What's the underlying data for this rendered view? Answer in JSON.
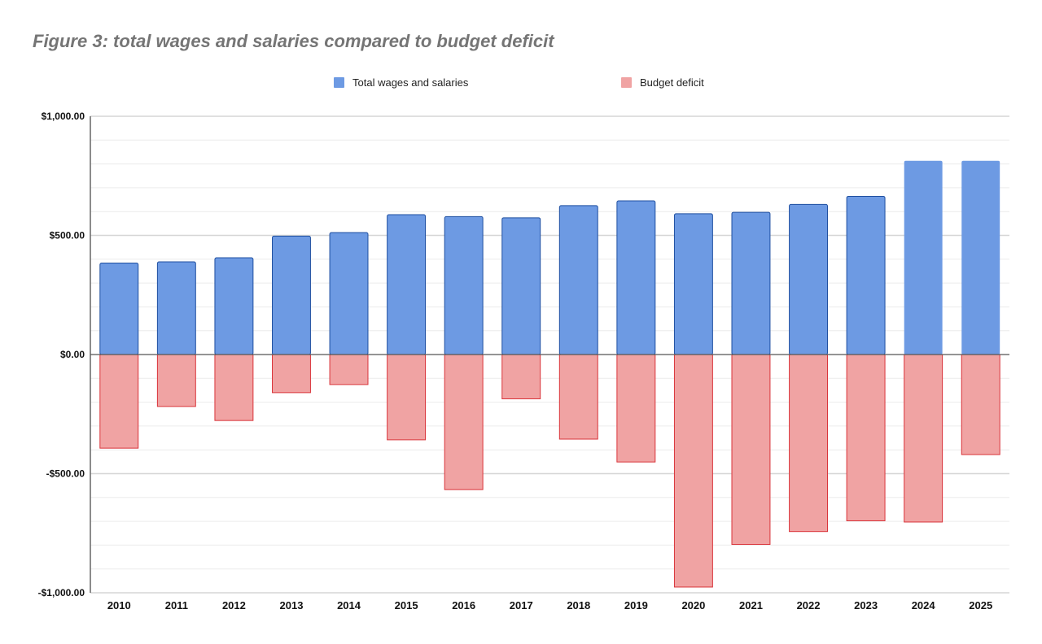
{
  "chart_data": {
    "type": "bar",
    "title": "Figure 3: total wages and salaries compared to budget deficit",
    "xlabel": "",
    "ylabel": "",
    "ylim": [
      -1000,
      1000
    ],
    "yticks": [
      1000,
      500,
      0,
      -500,
      -1000
    ],
    "ytick_labels": [
      "$1,000.00",
      "$500.00",
      "$0.00",
      "-$500.00",
      "-$1,000.00"
    ],
    "minor_grid_step": 100,
    "grid": true,
    "legend_position": "top-center",
    "categories": [
      "2010",
      "2011",
      "2012",
      "2013",
      "2014",
      "2015",
      "2016",
      "2017",
      "2018",
      "2019",
      "2020",
      "2021",
      "2022",
      "2023",
      "2024",
      "2025"
    ],
    "series": [
      {
        "name": "Total wages and salaries",
        "color": "#6d9ae3",
        "stroke": "#1f4fa0",
        "values": [
          384,
          389,
          406,
          497,
          512,
          587,
          579,
          574,
          625,
          645,
          591,
          597,
          630,
          664,
          813,
          813
        ]
      },
      {
        "name": "Budget deficit",
        "color": "#f0a3a3",
        "stroke": "#d9343a",
        "values": [
          -393,
          -218,
          -277,
          -160,
          -126,
          -358,
          -567,
          -186,
          -355,
          -451,
          -976,
          -797,
          -743,
          -698,
          -703,
          -420
        ]
      }
    ]
  }
}
